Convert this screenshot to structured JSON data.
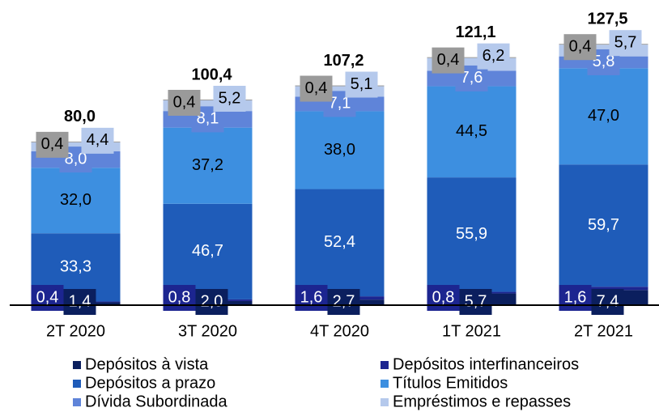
{
  "chart_data": {
    "type": "stacked_bar",
    "categories": [
      "2T 2020",
      "3T 2020",
      "4T 2020",
      "1T 2021",
      "2T 2021"
    ],
    "ylim": [
      0,
      134
    ],
    "series": [
      {
        "name": "Depósitos à vista",
        "color": "#0b1f5e",
        "values": [
          1.4,
          2.0,
          2.7,
          5.7,
          7.4
        ],
        "value_labels": [
          "1,4",
          "2,0",
          "2,7",
          "5,7",
          "7,4"
        ]
      },
      {
        "name": "Depósitos interfinanceiros",
        "color": "#1c2590",
        "values": [
          0.4,
          0.8,
          1.6,
          0.8,
          1.6
        ],
        "value_labels": [
          "0,4",
          "0,8",
          "1,6",
          "0,8",
          "1,6"
        ]
      },
      {
        "name": "Depósitos a prazo",
        "color": "#1f5cb9",
        "values": [
          33.3,
          46.7,
          52.4,
          55.9,
          59.7
        ],
        "value_labels": [
          "33,3",
          "46,7",
          "52,4",
          "55,9",
          "59,7"
        ]
      },
      {
        "name": "Títulos Emitidos",
        "color": "#3d8fe0",
        "values": [
          32.0,
          37.2,
          38.0,
          44.5,
          47.0
        ],
        "value_labels": [
          "32,0",
          "37,2",
          "38,0",
          "44,5",
          "47,0"
        ]
      },
      {
        "name": "Dívida Subordinada",
        "color": "#5f84d9",
        "values": [
          8.0,
          8.1,
          7.1,
          7.6,
          5.8
        ],
        "value_labels": [
          "8,0",
          "8,1",
          "7,1",
          "7,6",
          "5,8"
        ]
      },
      {
        "name": "Empréstimos e repasses",
        "color": "#b5c9ec",
        "values": [
          4.4,
          5.2,
          5.1,
          6.2,
          5.7
        ],
        "value_labels": [
          "4,4",
          "5,2",
          "5,1",
          "6,2",
          "5,7"
        ]
      },
      {
        "color": "#9a9a9a",
        "values": [
          0.4,
          0.4,
          0.4,
          0.4,
          0.4
        ],
        "value_labels": [
          "0,4",
          "0,4",
          "0,4",
          "0,4",
          "0,4"
        ]
      }
    ],
    "totals": {
      "values": [
        80.0,
        100.4,
        107.2,
        121.1,
        127.5
      ],
      "value_labels": [
        "80,0",
        "100,4",
        "107,2",
        "121,1",
        "127,5"
      ]
    }
  }
}
